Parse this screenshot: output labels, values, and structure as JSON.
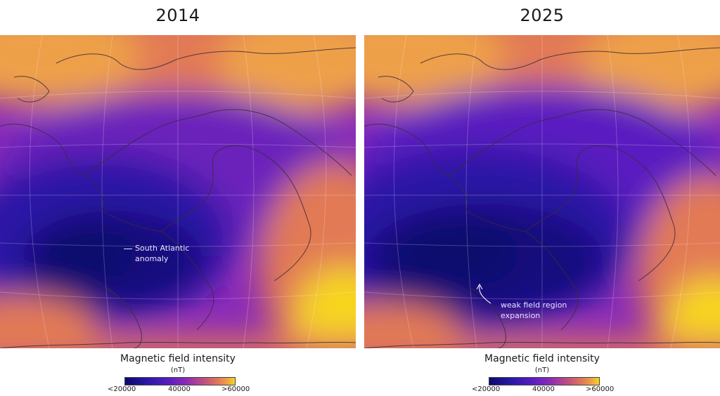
{
  "panels": [
    {
      "year": "2014",
      "annotation": [
        "South Atlantic",
        "anomaly"
      ],
      "legend": {
        "title": "Magnetic field intensity",
        "unit": "(nT)",
        "ticks": [
          "<20000",
          "40000",
          ">60000"
        ]
      }
    },
    {
      "year": "2025",
      "annotation": [
        "weak field region",
        "expansion"
      ],
      "legend": {
        "title": "Magnetic field intensity",
        "unit": "(nT)",
        "ticks": [
          "<20000",
          "40000",
          ">60000"
        ]
      }
    }
  ],
  "colors": {
    "scale": [
      "#0b0a6e",
      "#2a18a6",
      "#5a1ec0",
      "#8a2ab8",
      "#c2507f",
      "#e27a55",
      "#eea048",
      "#f7d51a"
    ],
    "coastline": "#3b2b3b",
    "graticule": "#ffffff",
    "annotation_text": "#e8e2ff"
  },
  "map_features": [
    "magnetic-field-heatmap",
    "coastlines",
    "graticule"
  ]
}
